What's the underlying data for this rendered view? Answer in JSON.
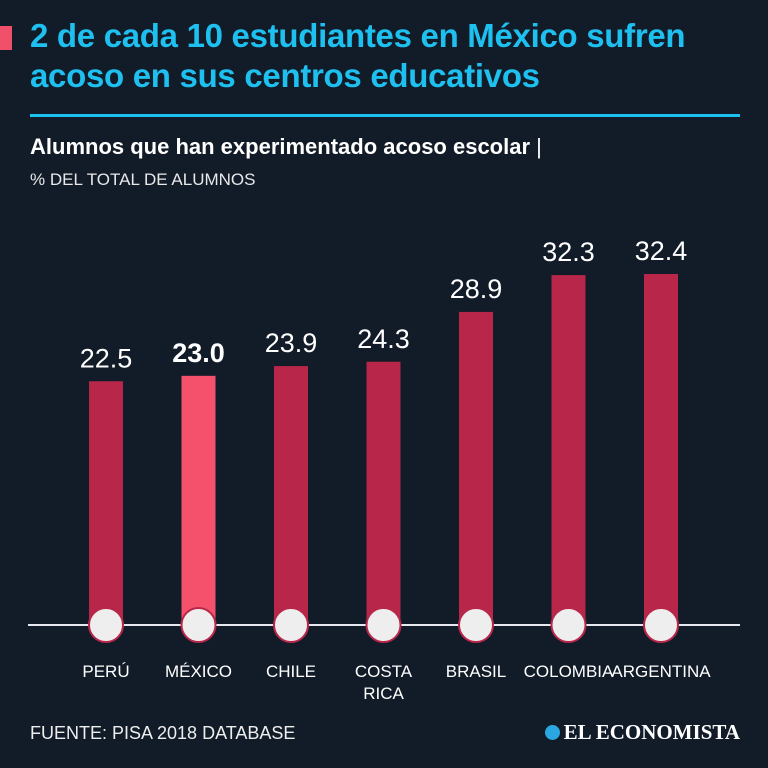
{
  "title": "2 de cada 10 estudiantes en México sufren acoso en sus centros educativos",
  "subtitle": "Alumnos que han experimentado acoso escolar",
  "unit": "% DEL TOTAL DE ALUMNOS",
  "footer": "FUENTE: PISA 2018 DATABASE",
  "logo": "EL ECONOMISTA",
  "colors": {
    "bar": "#b8264a",
    "highlight": "#f5506c",
    "title": "#1ec0f0",
    "background": "#121b28"
  },
  "chart_data": {
    "type": "bar",
    "title": "Alumnos que han experimentado acoso escolar",
    "ylabel": "% DEL TOTAL DE ALUMNOS",
    "categories": [
      "PERÚ",
      "MÉXICO",
      "CHILE",
      "COSTA RICA",
      "BRASIL",
      "COLOMBIA",
      "ARGENTINA"
    ],
    "values": [
      22.5,
      23.0,
      23.9,
      24.3,
      28.9,
      32.3,
      32.4
    ],
    "labels": [
      "22.5",
      "23.0",
      "23.9",
      "24.3",
      "28.9",
      "32.3",
      "32.4"
    ],
    "highlight": "MÉXICO",
    "ylim": [
      0,
      32.4
    ],
    "grid": false
  }
}
